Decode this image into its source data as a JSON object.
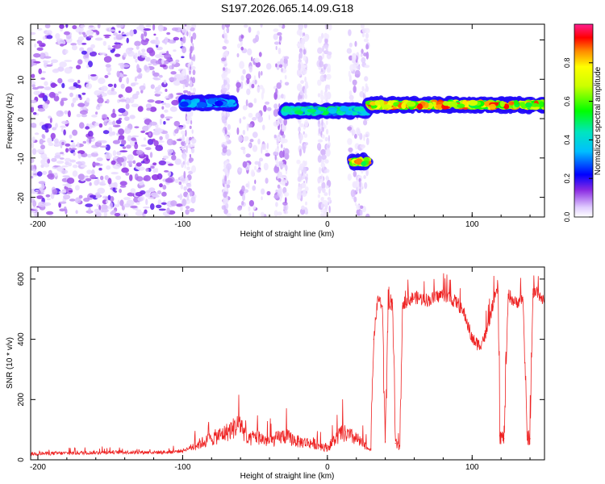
{
  "figure_title": "S197.2026.065.14.09.G18",
  "chart_data": [
    {
      "type": "heatmap",
      "title": "S197.2026.065.14.09.G18",
      "xlabel": "Height of straight line (km)",
      "ylabel": "Frequency (Hz)",
      "xlim": [
        -205,
        150
      ],
      "ylim": [
        -25,
        24
      ],
      "x_ticks": [
        -200,
        -100,
        0,
        100
      ],
      "y_ticks": [
        -20,
        -10,
        0,
        10,
        20
      ],
      "colorbar": {
        "label": "Normalized spectral amplitude",
        "range": [
          0,
          1
        ],
        "ticks": [
          0.0,
          0.2,
          0.4,
          0.6,
          0.8
        ]
      },
      "regions": [
        {
          "x": [
            -205,
            -100
          ],
          "description": "scattered low amplitude noise"
        },
        {
          "x": [
            -100,
            -65
          ],
          "frequency_hz": 4,
          "amplitude": 0.35
        },
        {
          "x": [
            -30,
            28
          ],
          "frequency_hz": 2,
          "amplitude": 0.5
        },
        {
          "x": [
            17,
            28
          ],
          "frequency_hz": -11,
          "amplitude": 0.85
        },
        {
          "x": [
            28,
            150
          ],
          "frequency_hz": 3.5,
          "amplitude": 0.9
        }
      ]
    },
    {
      "type": "line",
      "xlabel": "Height of straight line (km)",
      "ylabel": "SNR (10 * v/v)",
      "xlim": [
        -205,
        150
      ],
      "ylim": [
        0,
        640
      ],
      "x_ticks": [
        -200,
        -100,
        0,
        100
      ],
      "y_ticks": [
        0,
        200,
        400,
        600
      ],
      "color": "#ee2222",
      "series": [
        {
          "name": "SNR",
          "x": [
            -205,
            -150,
            -110,
            -100,
            -90,
            -80,
            -70,
            -60,
            -55,
            -50,
            -40,
            -30,
            -20,
            -10,
            0,
            10,
            20,
            27,
            30,
            32,
            35,
            38,
            40,
            42,
            45,
            47,
            50,
            52,
            60,
            70,
            80,
            90,
            95,
            100,
            105,
            110,
            115,
            118,
            119,
            122,
            125,
            130,
            135,
            138,
            140,
            142,
            145,
            150
          ],
          "y": [
            20,
            25,
            25,
            30,
            50,
            70,
            90,
            120,
            60,
            80,
            60,
            80,
            60,
            55,
            40,
            90,
            70,
            40,
            35,
            400,
            540,
            510,
            60,
            500,
            520,
            55,
            40,
            520,
            540,
            530,
            550,
            520,
            480,
            400,
            380,
            420,
            530,
            560,
            80,
            70,
            550,
            520,
            540,
            80,
            70,
            550,
            560,
            520
          ]
        }
      ]
    }
  ]
}
